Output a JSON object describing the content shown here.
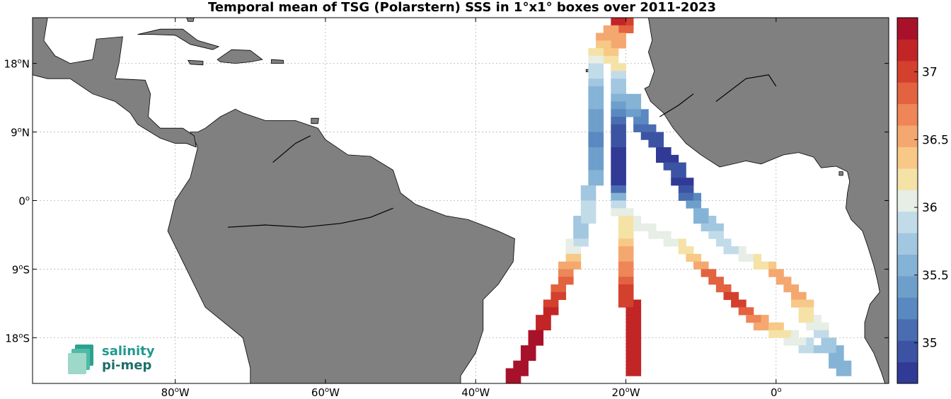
{
  "title": "Temporal mean of TSG (Polarstern) SSS in 1°x1° boxes over 2011-2023",
  "map": {
    "lon_range": [
      -99,
      15
    ],
    "lat_range": [
      -24,
      24
    ],
    "land_color": "#808080",
    "ocean_color": "#ffffff",
    "grid": true,
    "x_ticks": [
      {
        "lon": -80,
        "label": "80",
        "suffix": "W"
      },
      {
        "lon": -60,
        "label": "60",
        "suffix": "W"
      },
      {
        "lon": -40,
        "label": "40",
        "suffix": "W"
      },
      {
        "lon": -20,
        "label": "20",
        "suffix": "W"
      },
      {
        "lon": 0,
        "label": "0",
        "suffix": ""
      }
    ],
    "y_ticks": [
      {
        "lat": 18,
        "label": "18",
        "suffix": "N"
      },
      {
        "lat": 9,
        "label": "9",
        "suffix": "N"
      },
      {
        "lat": 0,
        "label": "0",
        "suffix": ""
      },
      {
        "lat": -9,
        "label": "9",
        "suffix": "S"
      },
      {
        "lat": -18,
        "label": "18",
        "suffix": "S"
      }
    ]
  },
  "colorbar": {
    "range": [
      34.7,
      37.4
    ],
    "ticks": [
      35,
      35.5,
      36,
      36.5,
      37
    ],
    "colors": [
      "#313a95",
      "#3c53a4",
      "#4a6db2",
      "#5a88c0",
      "#6e9fcb",
      "#85b3d6",
      "#a2c7e0",
      "#c2dbe9",
      "#e6eee5",
      "#f5e2a6",
      "#f7c886",
      "#f4a870",
      "#ee8658",
      "#e3623f",
      "#d3402e",
      "#c22526",
      "#a7122a"
    ]
  },
  "chart_data": {
    "type": "heatmap",
    "variable": "SSS",
    "tracks": [
      {
        "points": [
          [
            -21.5,
            23.5,
            37.2
          ],
          [
            -20.5,
            22.5,
            36.8
          ],
          [
            -21.5,
            21.5,
            36.6
          ],
          [
            -22,
            20,
            36.4
          ],
          [
            -23,
            18.5,
            36.2
          ],
          [
            -21.5,
            17.5,
            36.1
          ],
          [
            -22,
            15.5,
            35.8
          ],
          [
            -22,
            13.5,
            35.6
          ],
          [
            -22,
            11.5,
            35.3
          ],
          [
            -21.5,
            9.5,
            35.0
          ],
          [
            -21.5,
            6,
            34.8
          ],
          [
            -21.5,
            2,
            34.8
          ],
          [
            -21.5,
            0,
            35.9
          ],
          [
            -21,
            -2,
            36.1
          ],
          [
            -21,
            -5,
            36.3
          ],
          [
            -20.5,
            -8,
            36.6
          ],
          [
            -20.5,
            -11,
            36.9
          ],
          [
            -20,
            -14,
            37.1
          ],
          [
            -19.5,
            -17,
            37.1
          ],
          [
            -19.5,
            -20,
            37.2
          ],
          [
            -19.5,
            -23,
            37.2
          ]
        ]
      },
      {
        "points": [
          [
            -23,
            22,
            36.6
          ],
          [
            -24,
            20,
            36.2
          ],
          [
            -24.5,
            17,
            35.9
          ],
          [
            -24.5,
            14,
            35.6
          ],
          [
            -24.5,
            11,
            35.4
          ],
          [
            -24.5,
            8,
            35.3
          ],
          [
            -25,
            5,
            35.4
          ],
          [
            -25,
            2,
            35.6
          ],
          [
            -25.5,
            -1,
            36.0
          ],
          [
            -26.5,
            -4,
            35.7
          ],
          [
            -27.5,
            -7,
            36.2
          ],
          [
            -28.5,
            -10,
            36.8
          ],
          [
            -30,
            -13,
            37.0
          ],
          [
            -31.5,
            -16,
            37.2
          ],
          [
            -33,
            -19,
            37.3
          ],
          [
            -34.5,
            -22,
            37.3
          ],
          [
            -36,
            -24,
            37.3
          ]
        ]
      },
      {
        "points": [
          [
            -20,
            13,
            35.6
          ],
          [
            -18.5,
            10,
            35.2
          ],
          [
            -17,
            8,
            34.9
          ],
          [
            -15.5,
            6,
            34.8
          ],
          [
            -14,
            4,
            34.9
          ],
          [
            -13,
            2,
            34.8
          ],
          [
            -12,
            0,
            35.3
          ],
          [
            -10.5,
            -2,
            35.6
          ],
          [
            -9,
            -4,
            35.8
          ],
          [
            -7.5,
            -6,
            35.9
          ],
          [
            -5.5,
            -7,
            36.0
          ],
          [
            -3.5,
            -8,
            36.2
          ],
          [
            -1.5,
            -9,
            36.4
          ],
          [
            0.5,
            -11,
            36.6
          ],
          [
            2.5,
            -13,
            36.4
          ],
          [
            3.5,
            -15,
            36.2
          ],
          [
            5,
            -17,
            36.0
          ],
          [
            6.5,
            -19,
            35.7
          ],
          [
            7.5,
            -21,
            35.6
          ],
          [
            8.5,
            -23,
            35.5
          ]
        ]
      },
      {
        "points": [
          [
            -19.5,
            -3,
            36.0
          ],
          [
            -17.5,
            -4,
            36.0
          ],
          [
            -15.5,
            -5,
            36.1
          ],
          [
            -13.5,
            -6,
            36.2
          ],
          [
            -12,
            -7.5,
            36.4
          ],
          [
            -10.5,
            -9,
            36.7
          ],
          [
            -9,
            -10.5,
            36.9
          ],
          [
            -7.5,
            -12,
            36.9
          ],
          [
            -6,
            -13.5,
            37.0
          ],
          [
            -4.5,
            -15,
            36.7
          ],
          [
            -3,
            -16,
            36.5
          ],
          [
            -1,
            -17,
            36.3
          ],
          [
            1,
            -18,
            36.1
          ],
          [
            3,
            -19,
            35.9
          ],
          [
            5,
            -20,
            35.7
          ]
        ]
      }
    ]
  },
  "logo": {
    "line1": "salinity",
    "line2": "pi-mep"
  }
}
